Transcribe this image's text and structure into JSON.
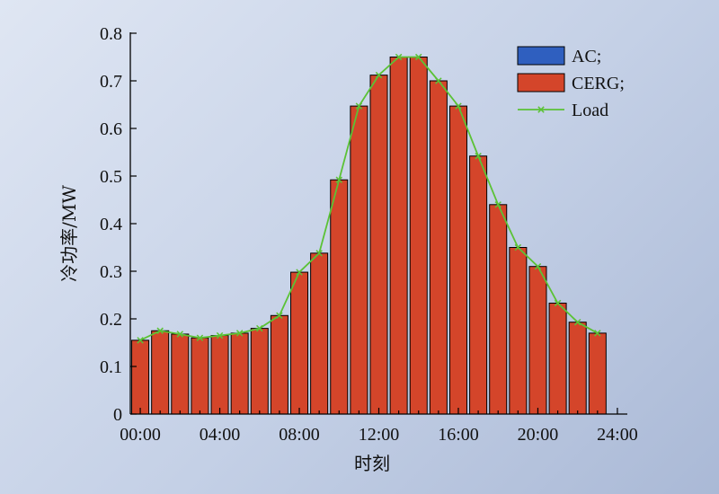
{
  "chart_data": {
    "type": "bar",
    "title": "",
    "xlabel": "时刻",
    "ylabel": "冷功率/MW",
    "x_tick_labels": [
      "00:00",
      "04:00",
      "08:00",
      "12:00",
      "16:00",
      "20:00",
      "24:00"
    ],
    "x_tick_values": [
      0,
      4,
      8,
      12,
      16,
      20,
      24
    ],
    "xlim": [
      -0.5,
      24.5
    ],
    "ylim": [
      0,
      0.8
    ],
    "y_ticks": [
      0,
      0.1,
      0.2,
      0.3,
      0.4,
      0.5,
      0.6,
      0.7,
      0.8
    ],
    "y_tick_labels": [
      "0",
      "0.1",
      "0.2",
      "0.3",
      "0.4",
      "0.5",
      "0.6",
      "0.7",
      "0.8"
    ],
    "grid": false,
    "legend_position": "top-right",
    "hours": [
      0,
      1,
      2,
      3,
      4,
      5,
      6,
      7,
      8,
      9,
      10,
      11,
      12,
      13,
      14,
      15,
      16,
      17,
      18,
      19,
      20,
      21,
      22,
      23
    ],
    "series": [
      {
        "name": "AC;",
        "type": "bar",
        "color": "#2f5fbf",
        "values": [
          0,
          0,
          0,
          0,
          0,
          0,
          0,
          0,
          0,
          0,
          0,
          0,
          0,
          0,
          0,
          0,
          0,
          0,
          0,
          0,
          0,
          0,
          0,
          0
        ]
      },
      {
        "name": "CERG;",
        "type": "bar",
        "color": "#d4452a",
        "values": [
          0.155,
          0.175,
          0.168,
          0.16,
          0.165,
          0.17,
          0.18,
          0.207,
          0.298,
          0.338,
          0.492,
          0.647,
          0.712,
          0.75,
          0.75,
          0.7,
          0.647,
          0.542,
          0.44,
          0.35,
          0.31,
          0.233,
          0.193,
          0.17
        ]
      },
      {
        "name": "Load",
        "type": "line",
        "color": "#5bc236",
        "values": [
          0.155,
          0.175,
          0.168,
          0.16,
          0.165,
          0.17,
          0.18,
          0.207,
          0.298,
          0.338,
          0.492,
          0.647,
          0.712,
          0.75,
          0.75,
          0.7,
          0.647,
          0.542,
          0.44,
          0.35,
          0.31,
          0.233,
          0.193,
          0.17
        ]
      }
    ]
  }
}
